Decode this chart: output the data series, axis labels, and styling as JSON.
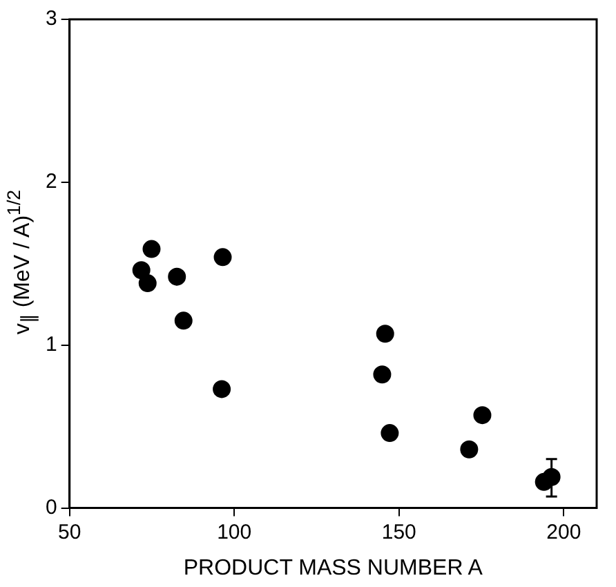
{
  "chart_data": {
    "type": "scatter",
    "xlabel": "PRODUCT MASS NUMBER A",
    "ylabel": "v$_{∥}$ (MeV / A)$^{1/2}$",
    "x": [
      71.8,
      73.7,
      74.9,
      82.6,
      84.6,
      96.5,
      96.2,
      145.8,
      144.9,
      147.2,
      171.3,
      175.3,
      194,
      196.3
    ],
    "values": [
      1.46,
      1.38,
      1.59,
      1.42,
      1.15,
      1.54,
      0.73,
      1.07,
      0.82,
      0.46,
      0.36,
      0.57,
      0.16,
      0.19
    ],
    "errors": [
      null,
      null,
      null,
      null,
      null,
      null,
      null,
      null,
      null,
      null,
      null,
      null,
      null,
      [
        0.07,
        0.3
      ]
    ],
    "color": "#000000",
    "marker": "circle",
    "xlim": [
      50,
      210
    ],
    "xticks": [
      50,
      100,
      150,
      200
    ],
    "ylim": [
      0,
      3
    ],
    "yticks": [
      0,
      1,
      2,
      3
    ],
    "grid": false,
    "legend": false
  }
}
